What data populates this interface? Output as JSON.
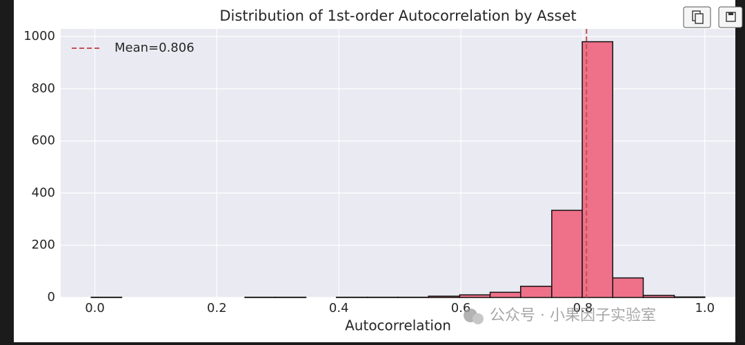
{
  "chart_data": {
    "type": "histogram",
    "title": "Distribution of 1st-order Autocorrelation by Asset",
    "xlabel": "Autocorrelation",
    "bins": [
      -0.006,
      0.044,
      0.095,
      0.145,
      0.195,
      0.246,
      0.296,
      0.346,
      0.396,
      0.447,
      0.497,
      0.547,
      0.598,
      0.648,
      0.698,
      0.749,
      0.799,
      0.849,
      0.899,
      0.95,
      1.0
    ],
    "values": [
      1,
      0,
      0,
      0,
      0,
      1,
      1,
      0,
      1,
      1,
      1,
      5,
      10,
      20,
      43,
      334,
      980,
      75,
      8,
      2
    ],
    "color": "#ee7089",
    "edgecolor": "#111111",
    "xlim": [
      -0.056,
      1.05
    ],
    "ylim": [
      0,
      1029
    ],
    "xticks": [
      {
        "value": 0,
        "label": "0.0"
      },
      0.2,
      0.4,
      0.6,
      0.8,
      {
        "value": 1,
        "label": "1.0"
      }
    ],
    "yticks": [
      0,
      200,
      400,
      600,
      800,
      1000
    ],
    "grid": true,
    "mean_line": {
      "value": 0.806,
      "label": "Mean=0.806",
      "color": "#c44e52"
    },
    "legend": "upper left",
    "watermark": "公众号 · 小果因子实验室"
  }
}
